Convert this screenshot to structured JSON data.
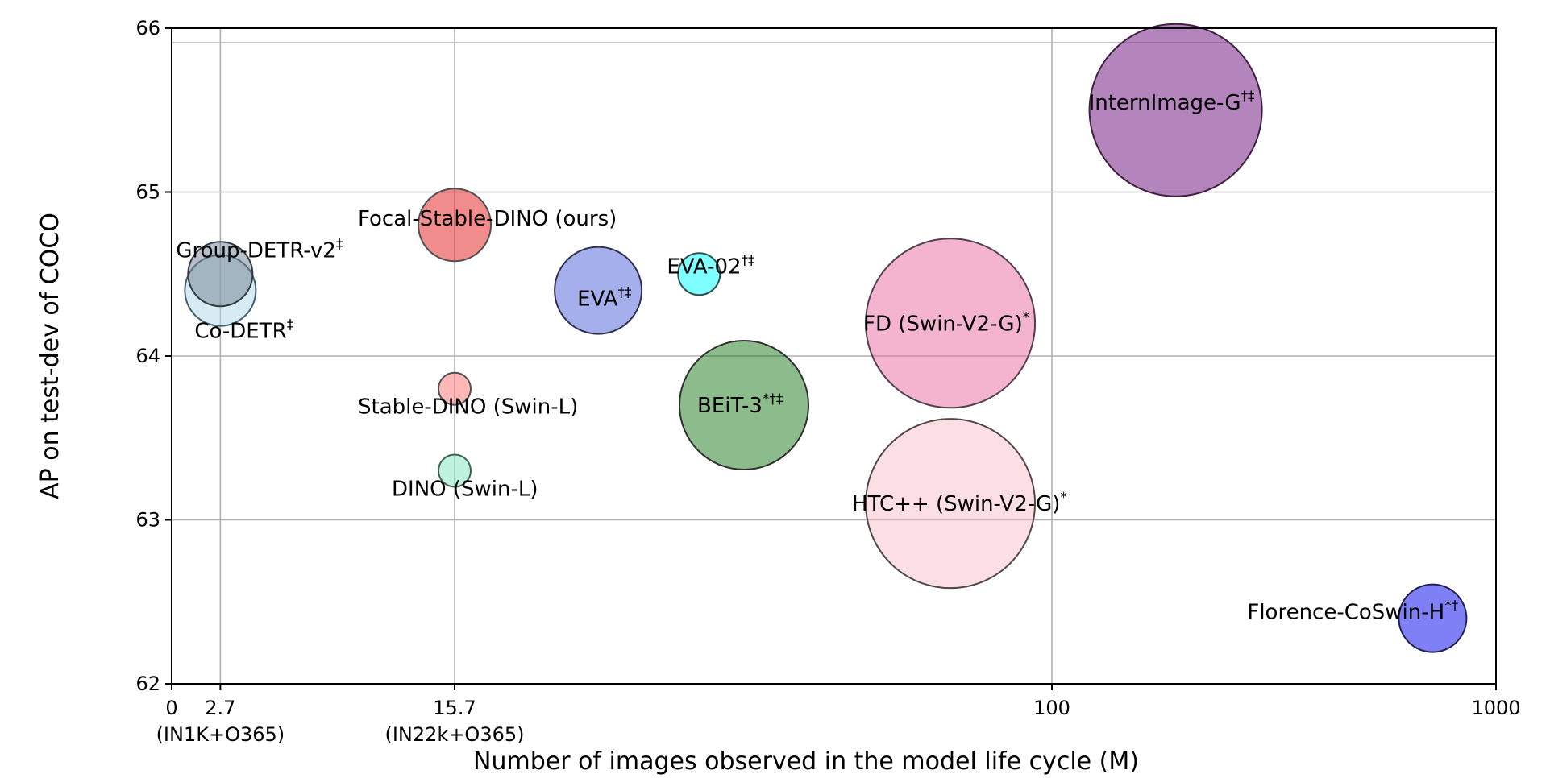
{
  "chart_data": {
    "type": "bubble",
    "xlabel": "Number of images observed in the model life cycle (M)",
    "ylabel": "AP on test-dev of COCO",
    "ylim": [
      62,
      66
    ],
    "yticks": [
      62,
      63,
      64,
      65,
      66
    ],
    "xticks": [
      {
        "value": 0,
        "label": "0",
        "sublabel": ""
      },
      {
        "value": 2.7,
        "label": "2.7",
        "sublabel": "(IN1K+O365)"
      },
      {
        "value": 15.7,
        "label": "15.7",
        "sublabel": "(IN22k+O365)"
      },
      {
        "value": 100,
        "label": "100",
        "sublabel": ""
      },
      {
        "value": 1000,
        "label": "1000",
        "sublabel": ""
      }
    ],
    "grid": true,
    "points": [
      {
        "label": "Co-DETR",
        "sup": "‡",
        "x": 2.7,
        "y": 64.4,
        "r": 44,
        "color": "#add8e6",
        "stroke": "#406070",
        "labelOffset": [
          -32,
          50
        ]
      },
      {
        "label": "Group-DETR-v2",
        "sup": "‡",
        "x": 2.7,
        "y": 64.5,
        "r": 40,
        "color": "#708090",
        "stroke": "#303840",
        "labelOffset": [
          -55,
          -30
        ]
      },
      {
        "label": "Focal-Stable-DINO (ours)",
        "sup": "",
        "x": 15.7,
        "y": 64.8,
        "r": 45,
        "color": "#e41a1c",
        "stroke": "#505050",
        "labelOffset": [
          -120,
          -8
        ]
      },
      {
        "label": "Stable-DINO (Swin-L)",
        "sup": "",
        "x": 15.7,
        "y": 63.8,
        "r": 20,
        "color": "#ff6f6f",
        "stroke": "#505050",
        "labelOffset": [
          -120,
          22
        ]
      },
      {
        "label": "DINO (Swin-L)",
        "sup": "",
        "x": 15.7,
        "y": 63.3,
        "r": 20,
        "color": "#7fe8c0",
        "stroke": "#406050",
        "labelOffset": [
          -78,
          22
        ]
      },
      {
        "label": "EVA",
        "sup": "†‡",
        "x": 24.5,
        "y": 64.4,
        "r": 54,
        "color": "#4a5fd8",
        "stroke": "#303050",
        "labelOffset": [
          -26,
          10
        ]
      },
      {
        "label": "EVA-02",
        "sup": "†‡",
        "x": 33.5,
        "y": 64.5,
        "r": 26,
        "color": "#00ffff",
        "stroke": "#305050",
        "labelOffset": [
          -40,
          -10
        ]
      },
      {
        "label": "BEiT-3",
        "sup": "*†‡",
        "x": 38.5,
        "y": 63.7,
        "r": 80,
        "color": "#1a7a1a",
        "stroke": "#303030",
        "labelOffset": [
          -58,
          0
        ]
      },
      {
        "label": "FD (Swin-V2-G)",
        "sup": "*",
        "x": 73,
        "y": 64.2,
        "r": 105,
        "color": "#e9699f",
        "stroke": "#504050",
        "labelOffset": [
          -108,
          0
        ]
      },
      {
        "label": "HTC++ (Swin-V2-G)",
        "sup": "*",
        "x": 73,
        "y": 63.1,
        "r": 105,
        "color": "#f8c0ca",
        "stroke": "#504848",
        "labelOffset": [
          -122,
          0
        ]
      },
      {
        "label": "InternImage-G",
        "sup": "†‡",
        "x": 190,
        "y": 65.5,
        "r": 107,
        "color": "#6a0a7a",
        "stroke": "#402040",
        "labelOffset": [
          -108,
          -10
        ]
      },
      {
        "label": "Florence-CoSwin-H",
        "sup": "*†",
        "x": 720,
        "y": 62.4,
        "r": 42,
        "color": "#0000ee",
        "stroke": "#202050",
        "labelOffset": [
          -230,
          -8
        ]
      }
    ]
  }
}
